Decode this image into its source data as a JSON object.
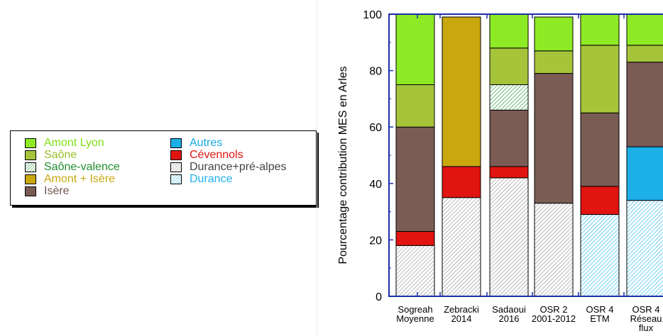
{
  "chart_data": {
    "type": "bar",
    "stacked": true,
    "ylabel": "Pourcentage contribution MES en Arles",
    "xlabel": "",
    "ylim": [
      0,
      100
    ],
    "yticks": [
      0,
      20,
      40,
      60,
      80,
      100
    ],
    "grid": false,
    "legend_position": "left, outside plot",
    "categories": [
      [
        "Sogreah",
        "Moyenne"
      ],
      [
        "Zebracki",
        "2014"
      ],
      [
        "Sadaoui",
        "2016"
      ],
      [
        "OSR 2",
        "2001-2012"
      ],
      [
        "OSR 4",
        "ETM"
      ],
      [
        "OSR 4",
        "Réseau",
        "flux"
      ]
    ],
    "series": [
      {
        "name": "Durance",
        "color": "#33bbee",
        "pattern": "hatch",
        "values": [
          0,
          0,
          0,
          0,
          29,
          34
        ]
      },
      {
        "name": "Durance+pré-alpes",
        "color": "#9a9a9a",
        "pattern": "hatch",
        "values": [
          18,
          35,
          42,
          33,
          0,
          0
        ]
      },
      {
        "name": "Autres",
        "color": "#1cb0e6",
        "pattern": "solid",
        "values": [
          0,
          0,
          0,
          0,
          0,
          19
        ]
      },
      {
        "name": "Cévennols",
        "color": "#e01410",
        "pattern": "solid",
        "values": [
          5,
          11,
          4,
          0,
          10,
          0
        ]
      },
      {
        "name": "Isère",
        "color": "#7a5c55",
        "pattern": "solid",
        "values": [
          37,
          0,
          20,
          46,
          26,
          30
        ]
      },
      {
        "name": "Amont + Isère",
        "color": "#c9a80d",
        "pattern": "solid",
        "values": [
          0,
          53,
          0,
          0,
          0,
          0
        ]
      },
      {
        "name": "Saône-valence",
        "color": "#2e9b3e",
        "pattern": "hatch",
        "values": [
          0,
          0,
          9,
          0,
          0,
          0
        ]
      },
      {
        "name": "Saône",
        "color": "#a6c43a",
        "pattern": "solid",
        "values": [
          15,
          0,
          13,
          8,
          24,
          6
        ]
      },
      {
        "name": "Amont Lyon",
        "color": "#8eea24",
        "pattern": "solid",
        "values": [
          25,
          0,
          12,
          12,
          11,
          11
        ]
      }
    ]
  },
  "legend": {
    "items": [
      {
        "label": "Amont Lyon",
        "color": "#8eea24",
        "text_color": "#7fe015",
        "pattern": "solid"
      },
      {
        "label": "Saône",
        "color": "#a6c43a",
        "text_color": "#9bbd2b",
        "pattern": "solid"
      },
      {
        "label": "Saône-valence",
        "color": "#2e9b3e",
        "text_color": "#1f8e2e",
        "pattern": "hatch"
      },
      {
        "label": "Amont + Isère",
        "color": "#c9a80d",
        "text_color": "#c9a80d",
        "pattern": "solid"
      },
      {
        "label": "Isère",
        "color": "#7a5c55",
        "text_color": "#6f544e",
        "pattern": "solid"
      },
      {
        "label": "Autres",
        "color": "#1cb0e6",
        "text_color": "#18a9e2",
        "pattern": "solid"
      },
      {
        "label": "Cévennols",
        "color": "#e01410",
        "text_color": "#e01410",
        "pattern": "solid"
      },
      {
        "label": "Durance+pré-alpes",
        "color": "#9a9a9a",
        "text_color": "#444444",
        "pattern": "hatch"
      },
      {
        "label": "Durance",
        "color": "#33bbee",
        "text_color": "#22b0ea",
        "pattern": "hatch"
      }
    ]
  }
}
